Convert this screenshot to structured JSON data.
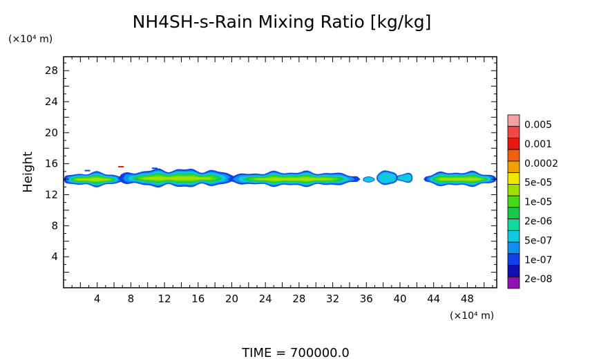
{
  "chart_data": {
    "type": "heatmap",
    "title": "NH4SH-s-Rain Mixing Ratio [kg/kg]",
    "ylabel": "Height",
    "y_unit_label": "(×10⁴ m)",
    "x_unit_label": "(×10⁴ m)",
    "footer": "TIME = 700000.0",
    "xlim": [
      0,
      51.5
    ],
    "ylim": [
      0,
      29.8
    ],
    "x_ticks": [
      4,
      8,
      12,
      16,
      20,
      24,
      28,
      32,
      36,
      40,
      44,
      48
    ],
    "y_ticks": [
      4,
      8,
      12,
      16,
      20,
      24,
      28
    ],
    "x_tick_labels": [
      "4",
      "8",
      "12",
      "16",
      "20",
      "24",
      "28",
      "32",
      "36",
      "40",
      "44",
      "48"
    ],
    "y_tick_labels": [
      "4",
      "8",
      "12",
      "16",
      "20",
      "24",
      "28"
    ],
    "grid": false,
    "legend_position": "right",
    "colorbar": {
      "labels": [
        "0.005",
        "0.001",
        "0.0002",
        "5e-05",
        "1e-05",
        "2e-06",
        "5e-07",
        "1e-07",
        "2e-08"
      ],
      "colors": [
        "#f4a0a0",
        "#f04848",
        "#e81810",
        "#f06010",
        "#f0a000",
        "#f0e800",
        "#a0e000",
        "#48d818",
        "#18c848",
        "#10d8a0",
        "#10c8e0",
        "#1090f0",
        "#1040e8",
        "#1010b0",
        "#9010b0"
      ]
    },
    "regions": [
      {
        "name": "band-1",
        "x": [
          0,
          7.0
        ],
        "y": [
          13.2,
          14.9
        ]
      },
      {
        "name": "band-2",
        "x": [
          6.5,
          35.3
        ],
        "y": [
          13.1,
          15.3
        ]
      },
      {
        "name": "band-3",
        "x": [
          35.5,
          41.5
        ],
        "y": [
          13.6,
          15.1
        ]
      },
      {
        "name": "band-4",
        "x": [
          42.8,
          51.5
        ],
        "y": [
          13.2,
          15.0
        ]
      }
    ]
  }
}
